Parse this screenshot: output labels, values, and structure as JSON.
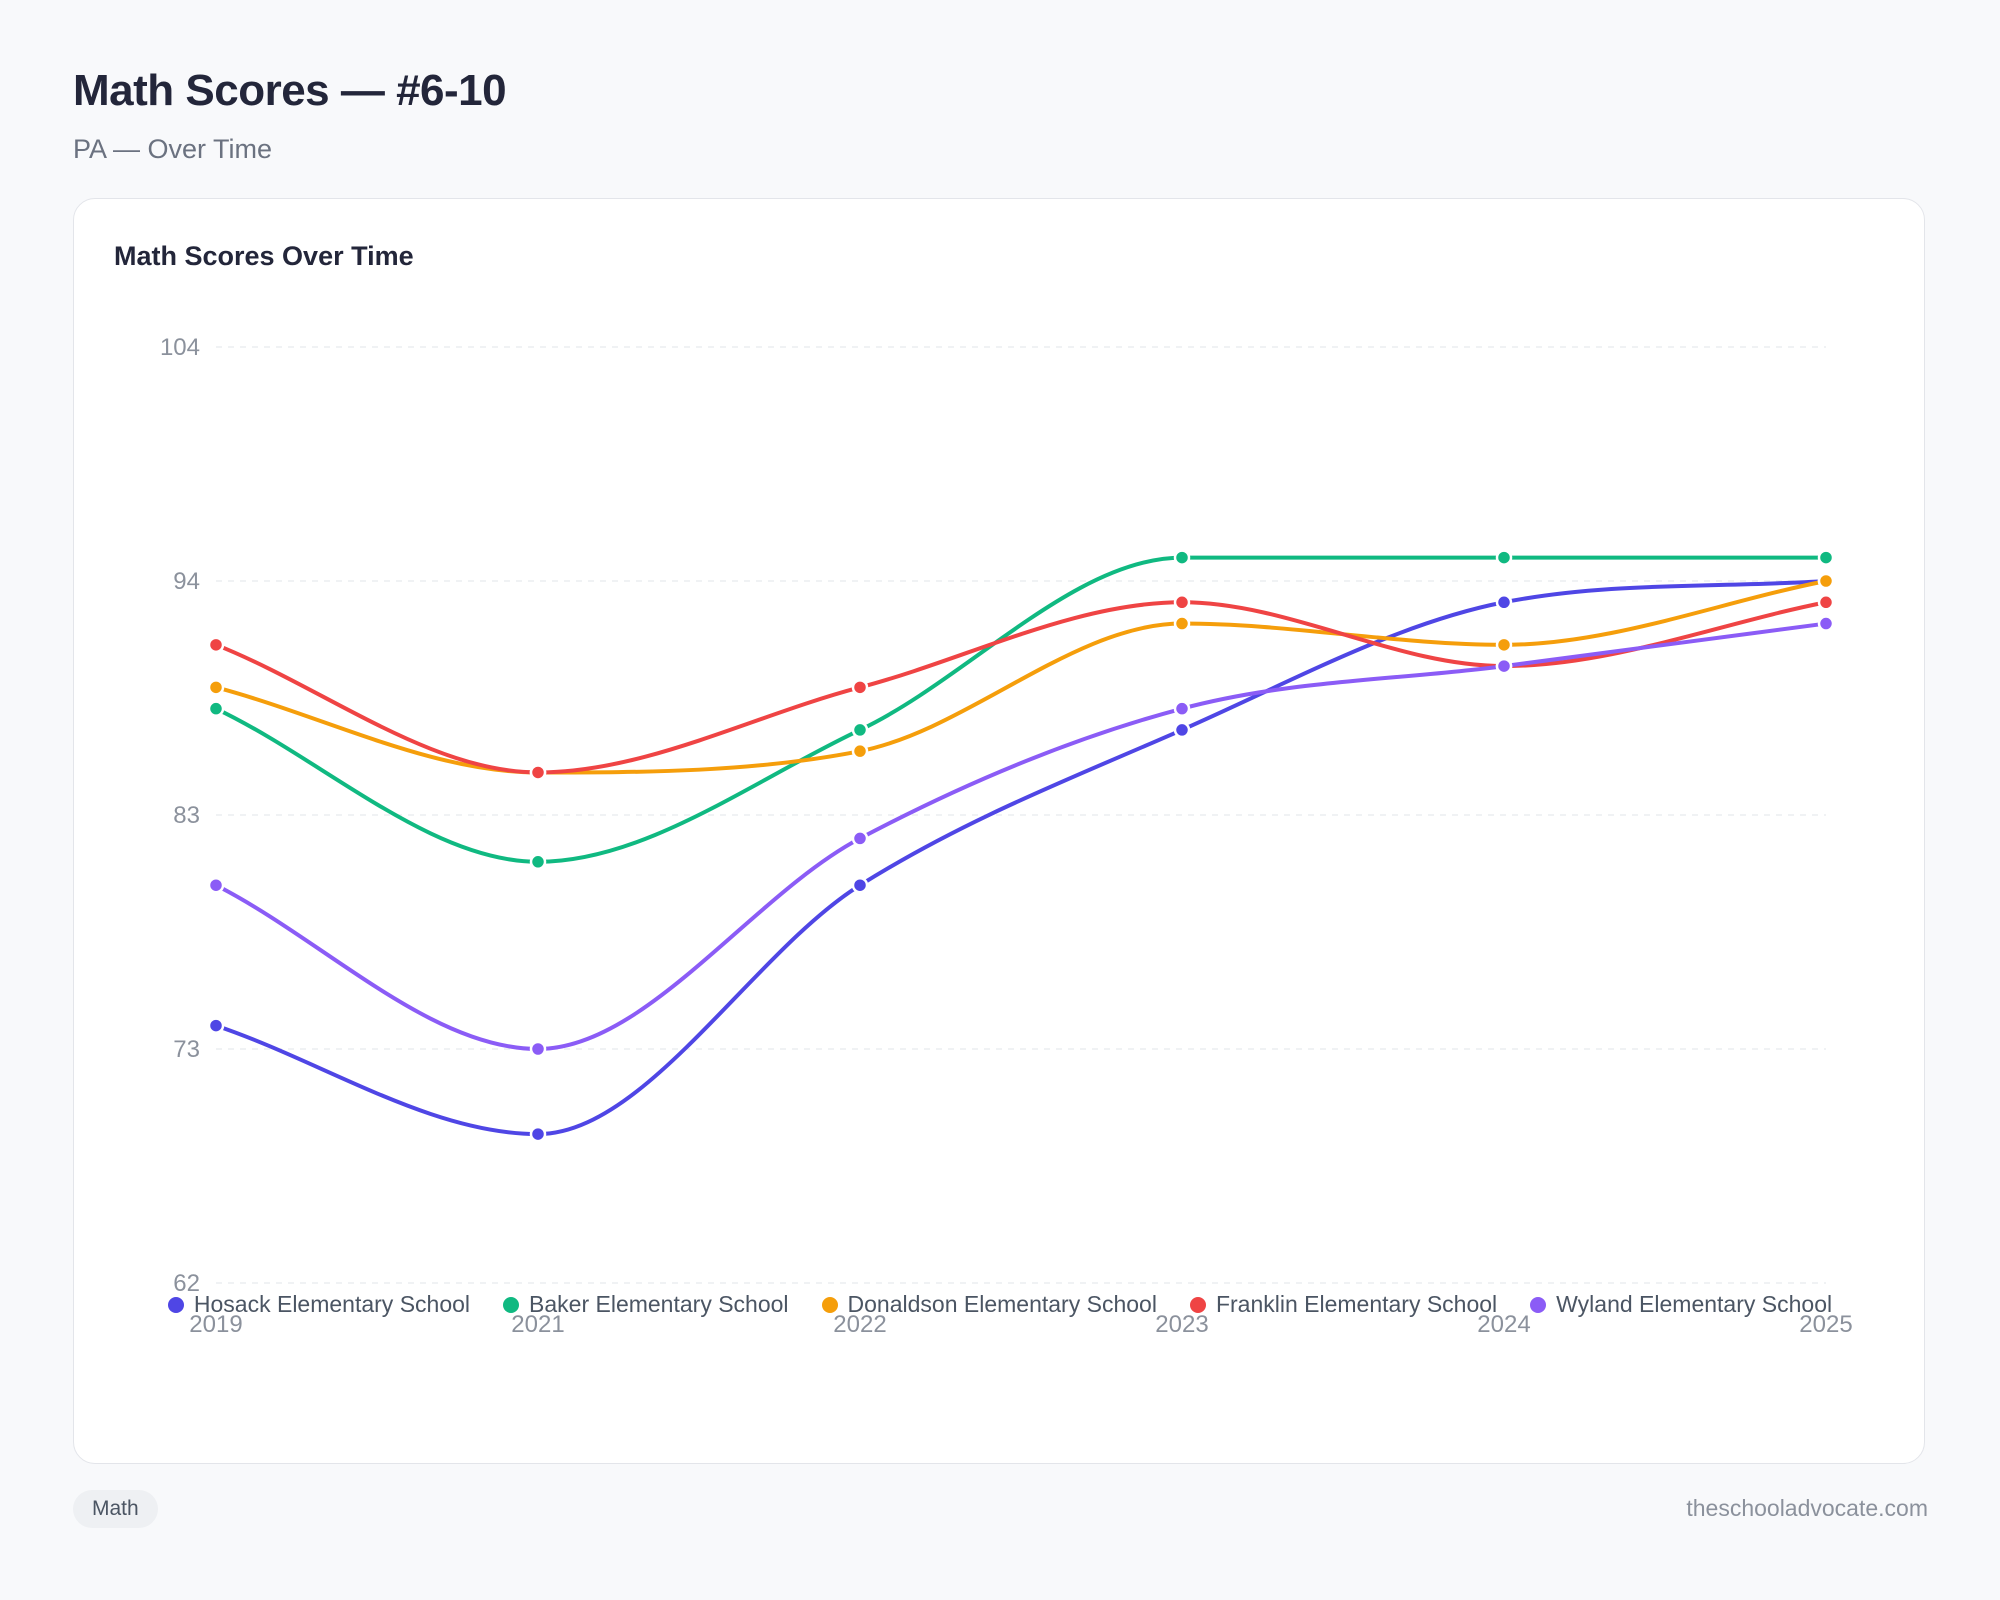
{
  "header": {
    "title": "Math Scores — #6-10",
    "subtitle": "PA — Over Time"
  },
  "card": {
    "title": "Math Scores Over Time"
  },
  "footer": {
    "tag": "Math",
    "source": "theschooladvocate.com"
  },
  "chart_data": {
    "type": "line",
    "title": "Math Scores Over Time",
    "x": [
      "2019",
      "2021",
      "2022",
      "2023",
      "2024",
      "2025"
    ],
    "y_ticks": [
      62,
      73,
      83,
      94,
      104
    ],
    "ylim": [
      62,
      104
    ],
    "grid": true,
    "legend_position": "bottom",
    "curve": "smooth",
    "series": [
      {
        "name": "Hosack Elementary School",
        "color": "#4f46e5",
        "values": [
          74,
          69,
          80,
          87,
          93,
          94
        ]
      },
      {
        "name": "Baker Elementary School",
        "color": "#10b981",
        "values": [
          88,
          81,
          87,
          95,
          95,
          95
        ]
      },
      {
        "name": "Donaldson Elementary School",
        "color": "#f59e0b",
        "values": [
          89,
          85,
          86,
          92,
          91,
          94
        ]
      },
      {
        "name": "Franklin Elementary School",
        "color": "#ef4444",
        "values": [
          91,
          85,
          89,
          93,
          90,
          93
        ]
      },
      {
        "name": "Wyland Elementary School",
        "color": "#8b5cf6",
        "values": [
          80,
          73,
          82,
          88,
          90,
          92
        ]
      }
    ]
  }
}
